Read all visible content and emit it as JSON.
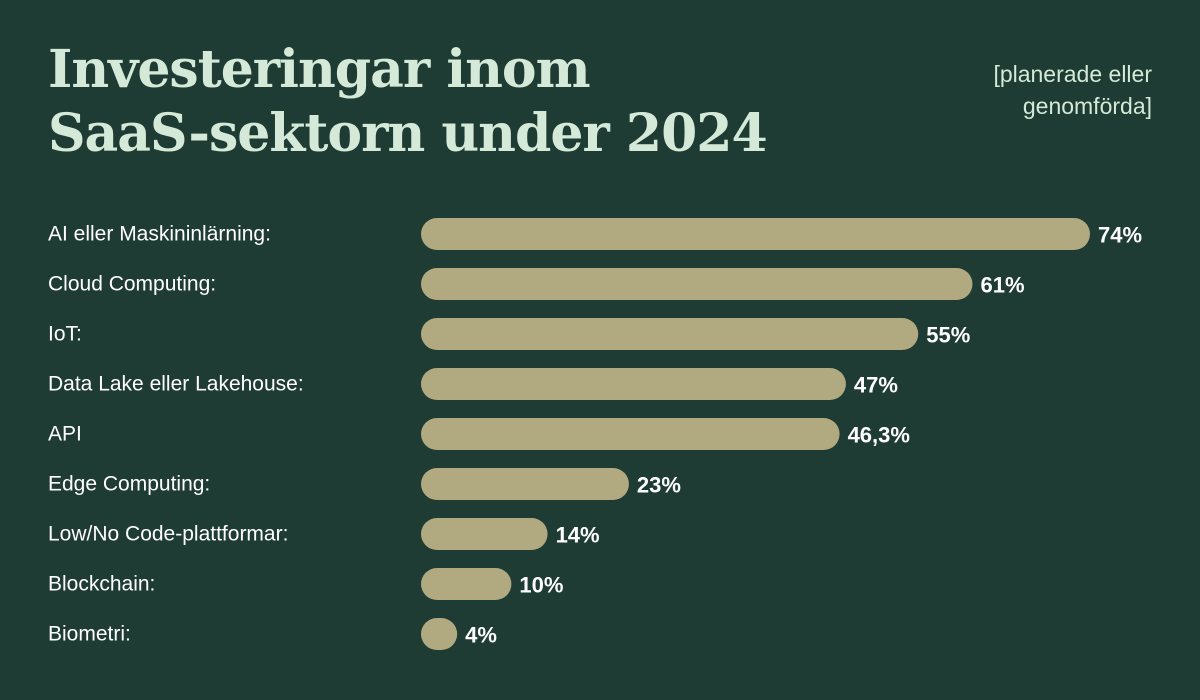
{
  "colors": {
    "background": "#1e3b34",
    "title": "#d4e9d7",
    "bar": "#b1aa81",
    "text": "#ffffff"
  },
  "chart_data": {
    "type": "bar",
    "orientation": "horizontal",
    "title_lines": [
      "Investeringar inom",
      "SaaS-sektorn under 2024"
    ],
    "subtitle_lines": [
      "[planerade eller",
      "genomförda]"
    ],
    "categories": [
      "AI eller Maskininlärning:",
      "Cloud Computing:",
      "IoT:",
      "Data Lake eller Lakehouse:",
      "API",
      "Edge Computing:",
      "Low/No Code-plattformar:",
      "Blockchain:",
      "Biometri:"
    ],
    "values": [
      74,
      61,
      55,
      47,
      46.3,
      23,
      14,
      10,
      4
    ],
    "value_labels": [
      "74%",
      "61%",
      "55%",
      "47%",
      "46,3%",
      "23%",
      "14%",
      "10%",
      "4%"
    ],
    "unit": "%",
    "grid": false,
    "legend": "none"
  }
}
